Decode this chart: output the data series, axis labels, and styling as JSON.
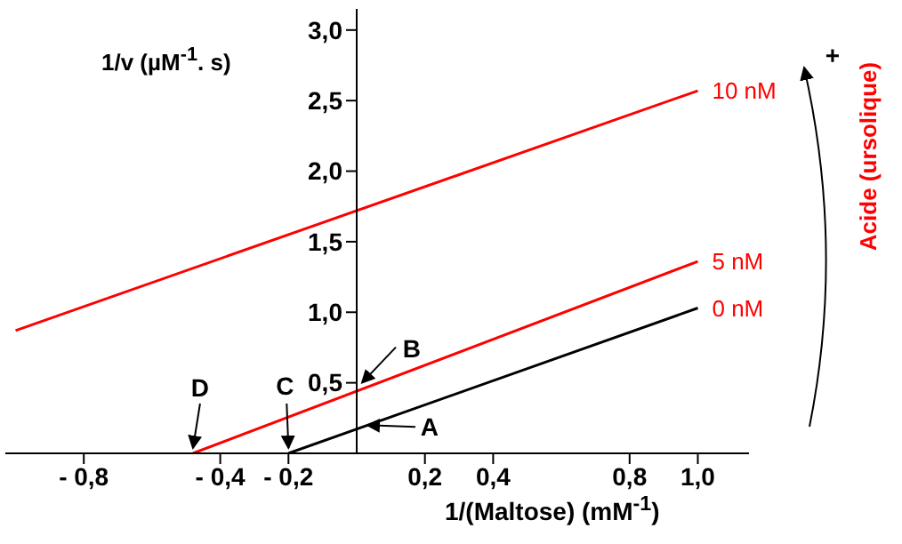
{
  "chart_data": {
    "type": "line",
    "xlabel": "1/(Maltose)  (mM$^{-1}$)",
    "ylabel": "1/v  (µM$^{-1}$. s)",
    "xlim": [
      -1.03,
      1.15
    ],
    "ylim": [
      0,
      3.15
    ],
    "xticks": [
      {
        "value": -0.8,
        "label": "- 0,8"
      },
      {
        "value": -0.4,
        "label": "- 0,4"
      },
      {
        "value": -0.2,
        "label": "- 0,2"
      },
      {
        "value": 0.2,
        "label": "0,2"
      },
      {
        "value": 0.4,
        "label": "0,4"
      },
      {
        "value": 0.8,
        "label": "0,8"
      },
      {
        "value": 1,
        "label": "1,0"
      }
    ],
    "yticks": [
      {
        "value": 0.5,
        "label": "0,5"
      },
      {
        "value": 1,
        "label": "1,0"
      },
      {
        "value": 1.5,
        "label": "1,5"
      },
      {
        "value": 2,
        "label": "2,0"
      },
      {
        "value": 2.5,
        "label": "2,5"
      },
      {
        "value": 3,
        "label": "3,0"
      }
    ],
    "series": [
      {
        "name": "10 nM",
        "color": "#ff0000",
        "x": [
          -1,
          1
        ],
        "values": [
          0.87,
          2.57
        ]
      },
      {
        "name": "5 nM",
        "color": "#ff0000",
        "x": [
          -0.48,
          1
        ],
        "values": [
          0,
          1.36
        ]
      },
      {
        "name": "0 nM",
        "color": "#000000",
        "x": [
          -0.2,
          1
        ],
        "values": [
          0,
          1.03
        ]
      }
    ],
    "annotations": [
      {
        "text": "D",
        "x": -0.48,
        "y": 0
      },
      {
        "text": "C",
        "x": -0.2,
        "y": 0
      },
      {
        "text": "B",
        "x": 0,
        "y": 0.45
      },
      {
        "text": "A",
        "x": 0,
        "y": 0.2
      },
      "+",
      "Acide (ursolique)"
    ],
    "grid": false,
    "legend": false
  }
}
